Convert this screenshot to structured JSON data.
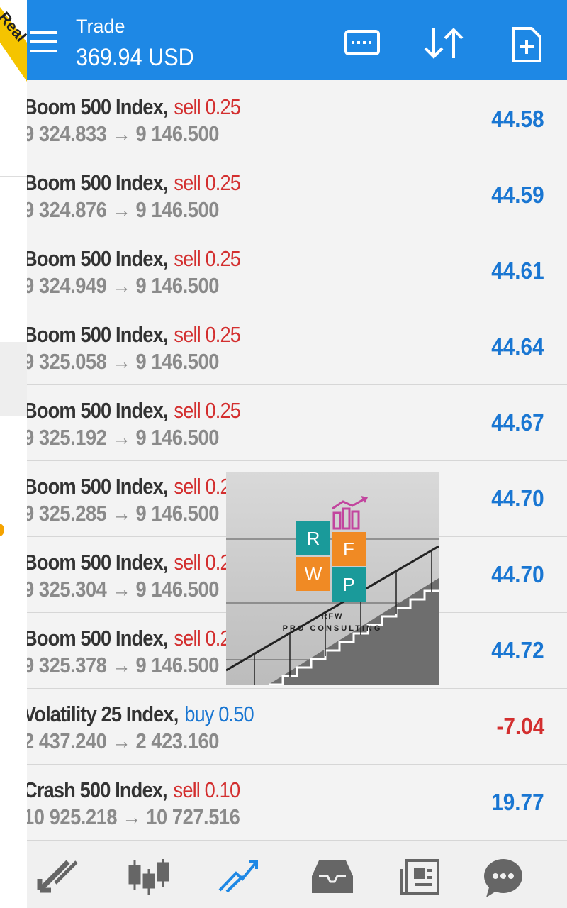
{
  "header": {
    "title": "Trade",
    "balance": "369.94 USD"
  },
  "ribbon": "Real",
  "positions": [
    {
      "symbol": "Boom 500 Index,",
      "order": "sell 0.25",
      "prices": "9 324.833 → 9 146.500",
      "profit": "44.58"
    },
    {
      "symbol": "Boom 500 Index,",
      "order": "sell 0.25",
      "prices": "9 324.876 → 9 146.500",
      "profit": "44.59"
    },
    {
      "symbol": "Boom 500 Index,",
      "order": "sell 0.25",
      "prices": "9 324.949 → 9 146.500",
      "profit": "44.61"
    },
    {
      "symbol": "Boom 500 Index,",
      "order": "sell 0.25",
      "prices": "9 325.058 → 9 146.500",
      "profit": "44.64"
    },
    {
      "symbol": "Boom 500 Index,",
      "order": "sell 0.25",
      "prices": "9 325.192 → 9 146.500",
      "profit": "44.67"
    },
    {
      "symbol": "Boom 500 Index,",
      "order": "sell 0.25",
      "prices": "9 325.285 → 9 146.500",
      "profit": "44.70"
    },
    {
      "symbol": "Boom 500 Index,",
      "order": "sell 0.25",
      "prices": "9 325.304 → 9 146.500",
      "profit": "44.70"
    },
    {
      "symbol": "Boom 500 Index,",
      "order": "sell 0.25",
      "prices": "9 325.378 → 9 146.500",
      "profit": "44.72"
    },
    {
      "symbol": "Volatility 25 Index,",
      "order": "buy 0.50",
      "prices": "2 437.240 → 2 423.160",
      "profit": "-7.04"
    },
    {
      "symbol": "Crash 500 Index,",
      "order": "sell 0.10",
      "prices": "10 925.218 → 10 727.516",
      "profit": "19.77"
    }
  ],
  "watermark": {
    "letters": [
      "R",
      "F",
      "W",
      "P"
    ],
    "brand": "RFW",
    "tagline": "PRO CONSULTING"
  }
}
